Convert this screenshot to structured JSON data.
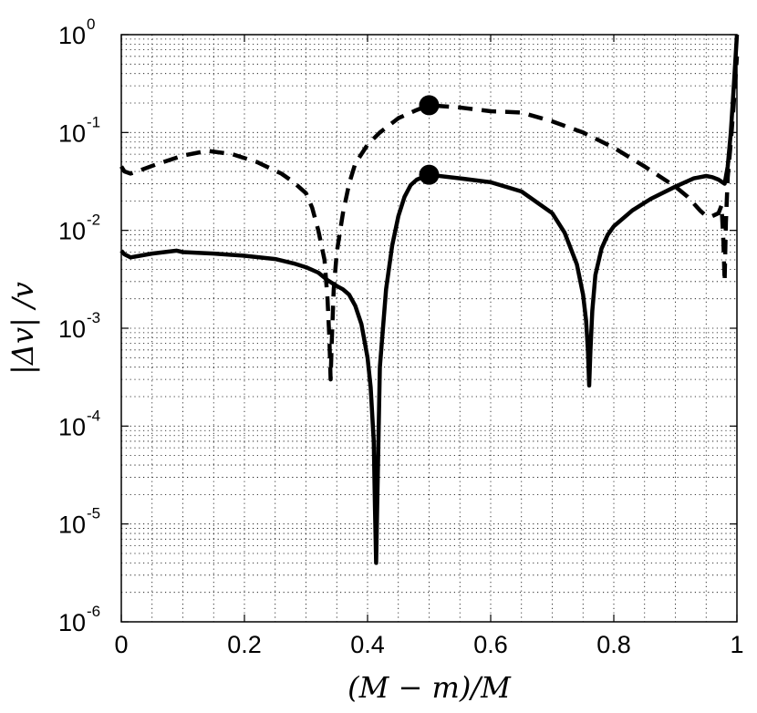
{
  "chart_data": {
    "type": "line",
    "title": "",
    "xlabel": "(M − m)/M",
    "ylabel": "|Δv| /v",
    "xlim": [
      0,
      1
    ],
    "ylim": [
      1e-06,
      1
    ],
    "yscale": "log",
    "grid": "dotted (major and minor)",
    "legend": "none",
    "x_ticks": [
      "0",
      "0.2",
      "0.4",
      "0.6",
      "0.8",
      "1"
    ],
    "x_tick_values": [
      0,
      0.2,
      0.4,
      0.6,
      0.8,
      1
    ],
    "y_ticks": [
      {
        "base": "10",
        "exp": "-6",
        "value": 1e-06
      },
      {
        "base": "10",
        "exp": "-5",
        "value": 1e-05
      },
      {
        "base": "10",
        "exp": "-4",
        "value": 0.0001
      },
      {
        "base": "10",
        "exp": "-3",
        "value": 0.001
      },
      {
        "base": "10",
        "exp": "-2",
        "value": 0.01
      },
      {
        "base": "10",
        "exp": "-1",
        "value": 0.1
      },
      {
        "base": "10",
        "exp": "0",
        "value": 1
      }
    ],
    "series": [
      {
        "style": "solid",
        "color": "#000000",
        "x": [
          0,
          0.005,
          0.015,
          0.03,
          0.05,
          0.07,
          0.09,
          0.1,
          0.15,
          0.2,
          0.25,
          0.28,
          0.3,
          0.32,
          0.335,
          0.35,
          0.36,
          0.37,
          0.38,
          0.39,
          0.4,
          0.405,
          0.41,
          0.412,
          0.414,
          0.416,
          0.42,
          0.43,
          0.44,
          0.45,
          0.46,
          0.47,
          0.48,
          0.5,
          0.55,
          0.6,
          0.65,
          0.7,
          0.72,
          0.74,
          0.75,
          0.755,
          0.758,
          0.76,
          0.762,
          0.765,
          0.77,
          0.78,
          0.79,
          0.8,
          0.83,
          0.86,
          0.9,
          0.93,
          0.95,
          0.96,
          0.97,
          0.98,
          0.985,
          0.99,
          0.995,
          1.0
        ],
        "y": [
          0.0062,
          0.0057,
          0.0053,
          0.0055,
          0.0058,
          0.006,
          0.0062,
          0.006,
          0.0058,
          0.0055,
          0.0051,
          0.0046,
          0.0042,
          0.0037,
          0.0031,
          0.0027,
          0.0025,
          0.0022,
          0.0017,
          0.0011,
          0.0005,
          0.00025,
          7e-05,
          1.5e-05,
          4e-06,
          2e-05,
          0.0004,
          0.0025,
          0.007,
          0.014,
          0.022,
          0.029,
          0.033,
          0.037,
          0.034,
          0.031,
          0.025,
          0.015,
          0.0095,
          0.0045,
          0.0022,
          0.0012,
          0.0006,
          0.00026,
          0.0006,
          0.0015,
          0.0035,
          0.0065,
          0.009,
          0.011,
          0.016,
          0.021,
          0.028,
          0.034,
          0.036,
          0.035,
          0.033,
          0.03,
          0.045,
          0.1,
          0.3,
          1.0
        ]
      },
      {
        "style": "dashed",
        "color": "#000000",
        "x": [
          0,
          0.005,
          0.015,
          0.03,
          0.06,
          0.1,
          0.14,
          0.18,
          0.22,
          0.26,
          0.28,
          0.3,
          0.31,
          0.32,
          0.33,
          0.335,
          0.338,
          0.34,
          0.342,
          0.345,
          0.35,
          0.36,
          0.37,
          0.38,
          0.4,
          0.42,
          0.45,
          0.48,
          0.5,
          0.55,
          0.6,
          0.65,
          0.7,
          0.75,
          0.8,
          0.85,
          0.9,
          0.92,
          0.94,
          0.95,
          0.96,
          0.97,
          0.975,
          0.978,
          0.98,
          0.982,
          0.985,
          0.99,
          0.995,
          1.0
        ],
        "y": [
          0.045,
          0.04,
          0.038,
          0.041,
          0.048,
          0.058,
          0.065,
          0.06,
          0.05,
          0.038,
          0.031,
          0.024,
          0.017,
          0.01,
          0.005,
          0.002,
          0.0008,
          0.0003,
          0.0008,
          0.0025,
          0.006,
          0.015,
          0.03,
          0.048,
          0.075,
          0.1,
          0.14,
          0.17,
          0.19,
          0.18,
          0.165,
          0.16,
          0.13,
          0.1,
          0.07,
          0.045,
          0.028,
          0.022,
          0.016,
          0.014,
          0.014,
          0.015,
          0.018,
          0.008,
          0.003,
          0.012,
          0.035,
          0.08,
          0.2,
          0.6
        ]
      }
    ],
    "markers": [
      {
        "x": 0.5,
        "y": 0.19,
        "shape": "filled-circle",
        "color": "#000000"
      },
      {
        "x": 0.5,
        "y": 0.037,
        "shape": "filled-circle",
        "color": "#000000"
      }
    ]
  }
}
